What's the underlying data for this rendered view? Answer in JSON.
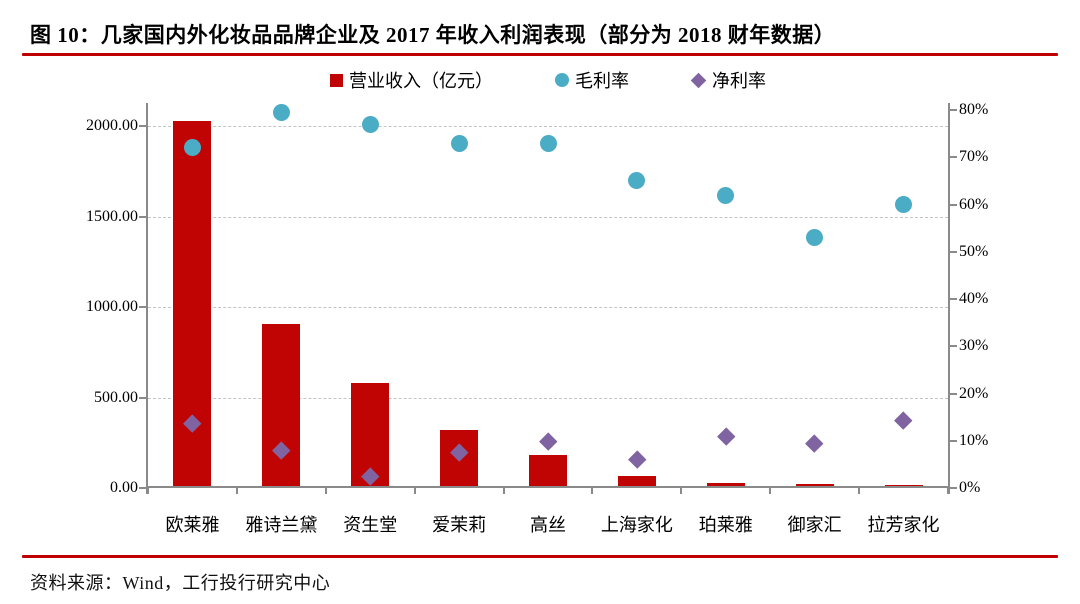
{
  "figure": {
    "title": "图 10：几家国内外化妆品品牌企业及 2017 年收入利润表现（部分为 2018 财年数据）",
    "source": "资料来源：Wind，工行投行研究中心",
    "accent_color": "#C00000"
  },
  "chart_data": {
    "type": "bar",
    "subtype": "combo-dual-axis (bars on left axis, scatter markers on right axis)",
    "title": "图 10：几家国内外化妆品品牌企业及 2017 年收入利润表现（部分为 2018 财年数据）",
    "categories": [
      "欧莱雅",
      "雅诗兰黛",
      "资生堂",
      "爱茉莉",
      "高丝",
      "上海家化",
      "珀莱雅",
      "御家汇",
      "拉芳家化"
    ],
    "series": [
      {
        "name": "营业收入（亿元）",
        "type": "bar",
        "marker": "square",
        "axis": "left",
        "color": "#C00404",
        "values": [
          2030,
          908,
          580,
          320,
          183,
          65,
          27,
          20,
          18
        ]
      },
      {
        "name": "毛利率",
        "type": "scatter",
        "marker": "circle",
        "axis": "right",
        "color": "#4BACC6",
        "values": [
          72,
          79.5,
          77,
          73,
          73,
          65,
          62,
          53,
          60
        ]
      },
      {
        "name": "净利率",
        "type": "scatter",
        "marker": "diamond",
        "axis": "right",
        "color": "#8064A2",
        "values": [
          13.8,
          8,
          2.5,
          7.5,
          10,
          6,
          11,
          9.5,
          14.3
        ]
      }
    ],
    "left_axis": {
      "tick_labels": [
        "0.00",
        "500.00",
        "1000.00",
        "1500.00",
        "2000.00"
      ],
      "tick_values": [
        0,
        500,
        1000,
        1500,
        2000
      ],
      "range": [
        0,
        2130
      ]
    },
    "right_axis": {
      "tick_labels": [
        "0%",
        "10%",
        "20%",
        "30%",
        "40%",
        "50%",
        "60%",
        "70%",
        "80%"
      ],
      "tick_values": [
        0,
        10,
        20,
        30,
        40,
        50,
        60,
        70,
        80
      ],
      "range": [
        0,
        81.5
      ]
    },
    "grid": "horizontal dashed lines at left-axis ticks",
    "legend_position": "top"
  }
}
